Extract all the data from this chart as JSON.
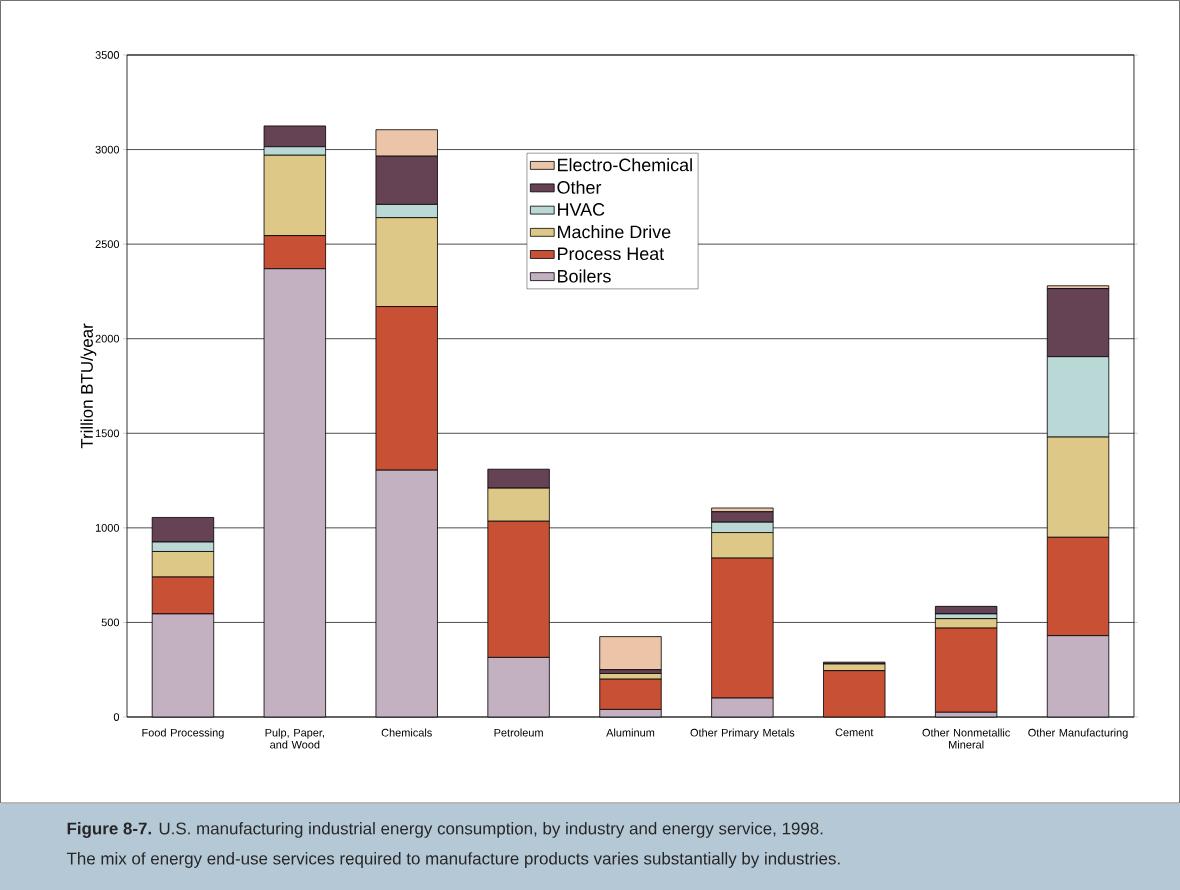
{
  "chart_data": {
    "type": "bar",
    "stacked": true,
    "ylabel": "Trillion BTU/year",
    "categories": [
      "Food Processing",
      "Pulp, Paper, and Wood",
      "Chemicals",
      "Petroleum",
      "Aluminum",
      "Other Primary Metals",
      "Cement",
      "Other Nonmetallic Mineral",
      "Other Manufacturing"
    ],
    "series": [
      {
        "name": "Boilers",
        "color": "#c3b1c2",
        "values": [
          545,
          2370,
          1305,
          315,
          40,
          100,
          0,
          25,
          430
        ]
      },
      {
        "name": "Process Heat",
        "color": "#c85034",
        "values": [
          195,
          175,
          865,
          720,
          160,
          740,
          245,
          445,
          520
        ]
      },
      {
        "name": "Machine Drive",
        "color": "#dec888",
        "values": [
          135,
          425,
          470,
          175,
          30,
          135,
          35,
          50,
          530
        ]
      },
      {
        "name": "HVAC",
        "color": "#b9d8d6",
        "values": [
          50,
          45,
          70,
          null,
          null,
          55,
          0,
          25,
          425
        ]
      },
      {
        "name": "Other",
        "color": "#664255",
        "values": [
          130,
          110,
          255,
          100,
          20,
          55,
          10,
          40,
          360
        ]
      },
      {
        "name": "Electro-Chemical",
        "color": "#ecc4a8",
        "values": [
          0,
          0,
          140,
          0,
          175,
          20,
          0,
          0,
          15
        ]
      }
    ],
    "ylim": [
      0,
      3500
    ],
    "yticks": [
      0,
      500,
      1000,
      1500,
      2000,
      2500,
      3000,
      3500
    ],
    "grid": "y",
    "legend": "top",
    "annotations": [
      "**Figure 8-7.** U.S. manufacturing industrial energy consumption, by industry and energy service, 1998.",
      "The mix of energy end-use services required to manufacture products varies substantially by industries."
    ]
  }
}
